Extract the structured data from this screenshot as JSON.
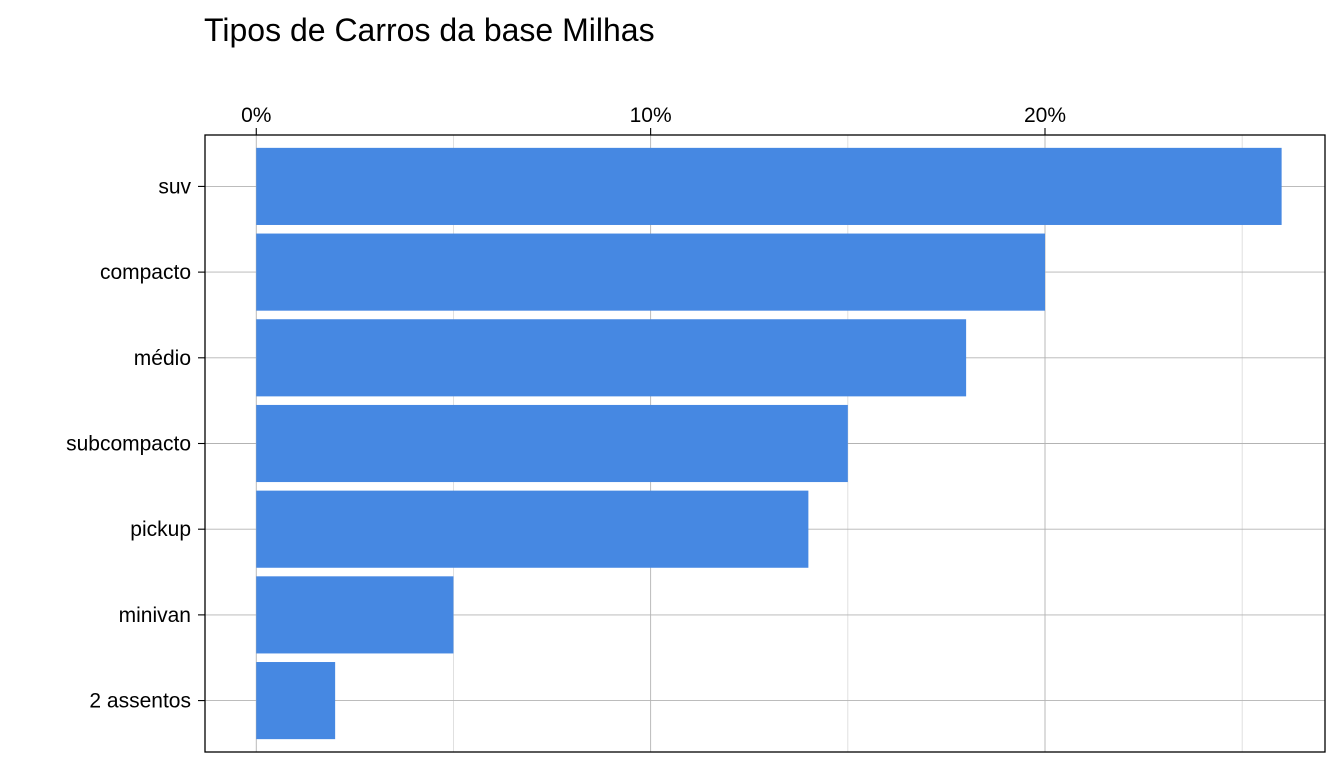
{
  "chart_data": {
    "type": "bar",
    "orientation": "horizontal",
    "title": "Tipos de Carros da base Milhas",
    "xlabel": "",
    "ylabel": "",
    "categories": [
      "suv",
      "compacto",
      "médio",
      "subcompacto",
      "pickup",
      "minivan",
      "2 assentos"
    ],
    "values": [
      26.0,
      20.0,
      18.0,
      15.0,
      14.0,
      5.0,
      2.0
    ],
    "unit": "%",
    "xlim": [
      -1.3,
      27.1
    ],
    "x_ticks": [
      0,
      10,
      20
    ],
    "x_tick_labels": [
      "0%",
      "10%",
      "20%"
    ],
    "x_axis_position": "top",
    "grid": true,
    "bar_color": "#4688E2",
    "grid_color": "#B3B3B3",
    "minor_grid_color": "#D9D9D9"
  }
}
